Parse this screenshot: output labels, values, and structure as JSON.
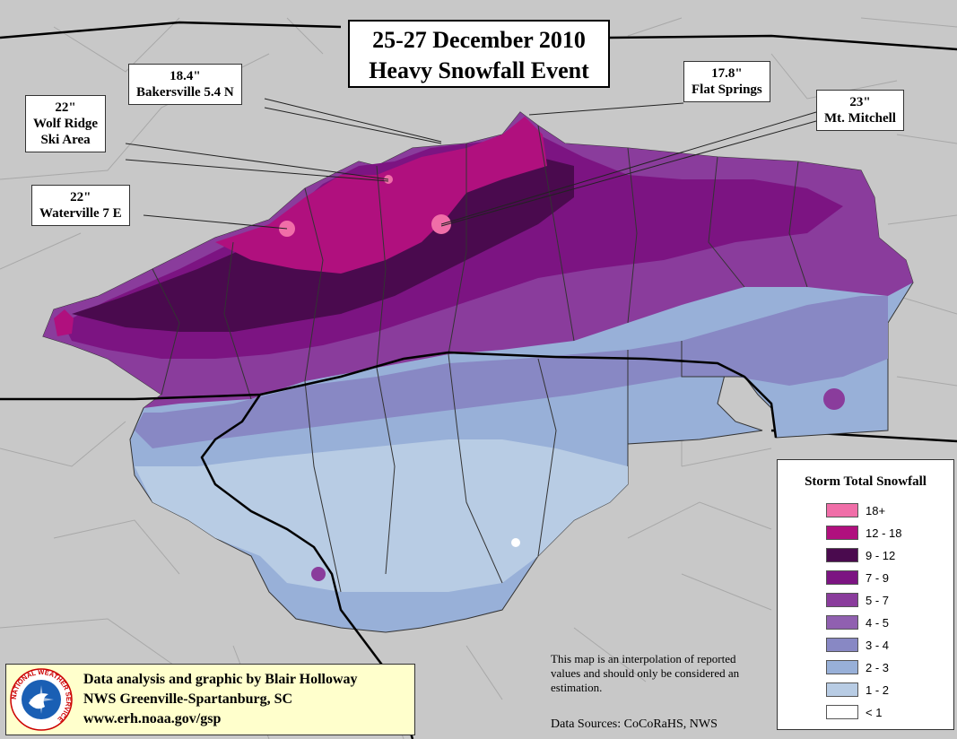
{
  "title": {
    "line1": "25-27 December 2010",
    "line2": "Heavy Snowfall Event"
  },
  "callouts": [
    {
      "id": "bakersville",
      "amount": "18.4\"",
      "station": "Bakersville 5.4 N"
    },
    {
      "id": "flat-springs",
      "amount": "17.8\"",
      "station": "Flat Springs"
    },
    {
      "id": "wolf-ridge",
      "amount": "22\"",
      "station_line1": "Wolf Ridge",
      "station_line2": "Ski Area"
    },
    {
      "id": "mt-mitchell",
      "amount": "23\"",
      "station": "Mt. Mitchell"
    },
    {
      "id": "waterville",
      "amount": "22\"",
      "station": "Waterville 7 E"
    }
  ],
  "legend": {
    "title": "Storm Total Snowfall",
    "items": [
      {
        "label": "18+",
        "color": "#f06ea8"
      },
      {
        "label": "12 - 18",
        "color": "#b0107e"
      },
      {
        "label": "9 - 12",
        "color": "#4a0a4e"
      },
      {
        "label": "7 - 9",
        "color": "#7c1482"
      },
      {
        "label": "5 - 7",
        "color": "#8a3c9c"
      },
      {
        "label": "4 - 5",
        "color": "#9060b0"
      },
      {
        "label": "3 - 4",
        "color": "#8888c4"
      },
      {
        "label": "2 - 3",
        "color": "#98b0d8"
      },
      {
        "label": "1 - 2",
        "color": "#b8cce4"
      },
      {
        "label": "< 1",
        "color": "#ffffff"
      }
    ]
  },
  "credit": {
    "line1": "Data analysis and graphic by Blair Holloway",
    "line2": "NWS Greenville-Spartanburg, SC",
    "line3": "www.erh.noaa.gov/gsp"
  },
  "note": "This map is an interpolation of reported values and should only be considered an estimation.",
  "sources": "Data Sources: CoCoRaHS, NWS",
  "logo": {
    "text": "NATIONAL WEATHER SERVICE"
  },
  "colors": {
    "background": "#c8c8c8",
    "credit_background": "#ffffcc"
  }
}
